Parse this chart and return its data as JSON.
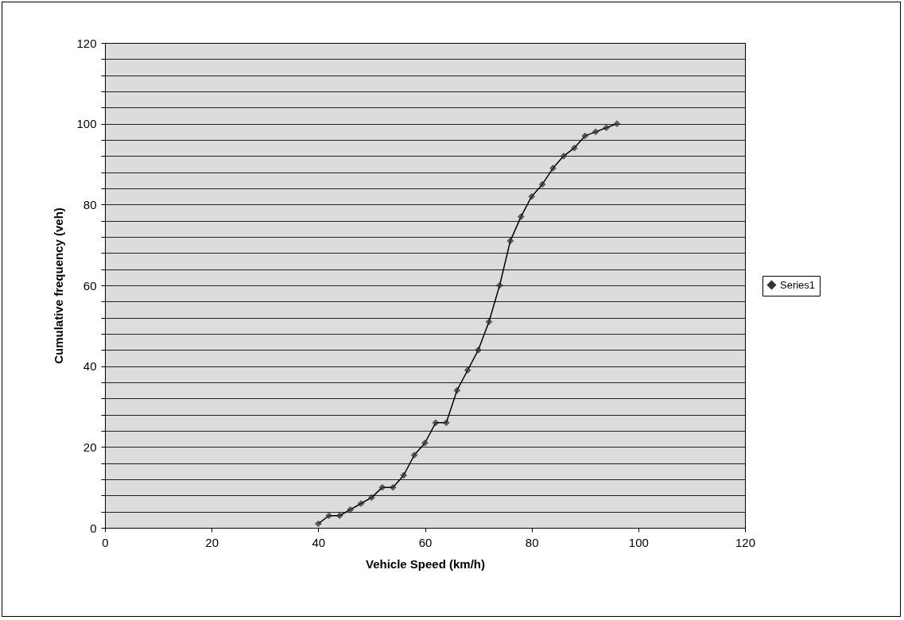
{
  "chart_data": {
    "type": "line",
    "xlabel": "Vehicle Speed (km/h)",
    "ylabel": "Cumulative frequency (veh)",
    "x": [
      40,
      42,
      44,
      46,
      48,
      50,
      52,
      54,
      56,
      58,
      60,
      62,
      64,
      66,
      68,
      70,
      72,
      74,
      76,
      78,
      80,
      82,
      84,
      86,
      88,
      90,
      92,
      94,
      96
    ],
    "series": [
      {
        "name": "Series1",
        "color": "#333333",
        "values": [
          1,
          3,
          3,
          4.5,
          6,
          7.5,
          10,
          10,
          13,
          18,
          21,
          26,
          26,
          34,
          39,
          44,
          51,
          60,
          71,
          77,
          82,
          85,
          89,
          92,
          94,
          97,
          98,
          99,
          100
        ]
      }
    ],
    "xlim": [
      0,
      120
    ],
    "xticks": [
      0,
      20,
      40,
      60,
      80,
      100,
      120
    ],
    "ylim": [
      0,
      120
    ],
    "yticks": [
      0,
      {
        "value": 4,
        "label": null
      },
      {
        "value": 8,
        "label": null
      },
      {
        "value": 12,
        "label": null
      },
      {
        "value": 16,
        "label": null
      },
      20,
      {
        "value": 24,
        "label": null
      },
      {
        "value": 28,
        "label": null
      },
      {
        "value": 32,
        "label": null
      },
      {
        "value": 36,
        "label": null
      },
      40,
      {
        "value": 44,
        "label": null
      },
      {
        "value": 48,
        "label": null
      },
      {
        "value": 52,
        "label": null
      },
      {
        "value": 56,
        "label": null
      },
      60,
      {
        "value": 64,
        "label": null
      },
      {
        "value": 68,
        "label": null
      },
      {
        "value": 72,
        "label": null
      },
      {
        "value": 76,
        "label": null
      },
      80,
      {
        "value": 84,
        "label": null
      },
      {
        "value": 88,
        "label": null
      },
      {
        "value": 92,
        "label": null
      },
      {
        "value": 96,
        "label": null
      },
      100,
      {
        "value": 104,
        "label": null
      },
      {
        "value": 108,
        "label": null
      },
      {
        "value": 112,
        "label": null
      },
      {
        "value": 116,
        "label": null
      },
      120
    ],
    "grid": "y",
    "legend": "right",
    "marker": "diamond",
    "line_style": "solid"
  }
}
